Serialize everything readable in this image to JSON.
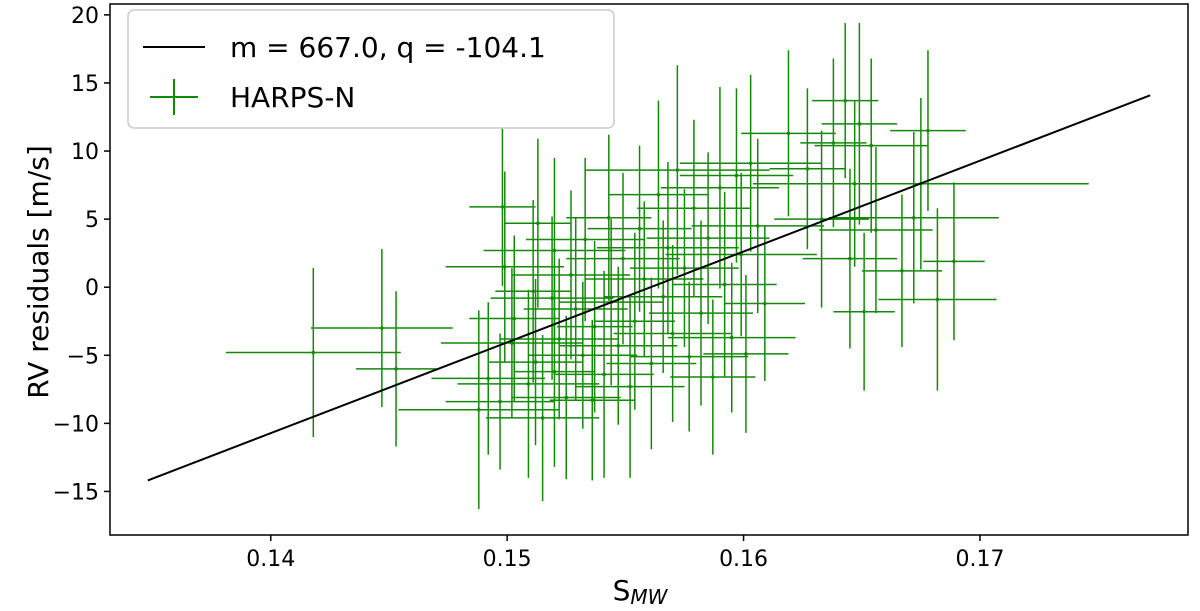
{
  "chart_data": {
    "type": "scatter",
    "title": "",
    "xlabel": "S",
    "xlabel_sub": "MW",
    "ylabel": "RV residuals [m/s]",
    "xlim": [
      0.1332,
      0.1788
    ],
    "ylim": [
      -18.2,
      20.8
    ],
    "x_ticks": [
      0.14,
      0.15,
      0.16,
      0.17
    ],
    "x_tick_labels": [
      "0.14",
      "0.15",
      "0.16",
      "0.17"
    ],
    "y_ticks": [
      -15,
      -10,
      -5,
      0,
      5,
      10,
      15,
      20
    ],
    "y_tick_labels": [
      "−15",
      "−10",
      "−5",
      "0",
      "5",
      "10",
      "15",
      "20"
    ],
    "grid": false,
    "legend_position": "top-left",
    "colors": {
      "fit": "#000000",
      "data": "#138a07"
    },
    "fit_line": {
      "label": "m = 667.0, q = -104.1",
      "slope": 667.0,
      "intercept": -104.1,
      "x_range": [
        0.1348,
        0.1772
      ]
    },
    "series": [
      {
        "name": "HARPS-N",
        "marker": "errorbar",
        "points": [
          {
            "x": 0.1418,
            "y": -4.8,
            "xerr": 0.0037,
            "yerr": 6.2
          },
          {
            "x": 0.1447,
            "y": -3.0,
            "xerr": 0.003,
            "yerr": 5.8
          },
          {
            "x": 0.1453,
            "y": -6.0,
            "xerr": 0.0017,
            "yerr": 5.7
          },
          {
            "x": 0.1488,
            "y": -9.0,
            "xerr": 0.0034,
            "yerr": 7.3
          },
          {
            "x": 0.1492,
            "y": -6.7,
            "xerr": 0.0024,
            "yerr": 5.6
          },
          {
            "x": 0.1497,
            "y": -8.4,
            "xerr": 0.0023,
            "yerr": 5.0
          },
          {
            "x": 0.1498,
            "y": 5.9,
            "xerr": 0.0014,
            "yerr": 5.8
          },
          {
            "x": 0.1499,
            "y": 1.5,
            "xerr": 0.0025,
            "yerr": 7.0
          },
          {
            "x": 0.1502,
            "y": -4.1,
            "xerr": 0.003,
            "yerr": 5.5
          },
          {
            "x": 0.1503,
            "y": -2.3,
            "xerr": 0.0019,
            "yerr": 6.1
          },
          {
            "x": 0.1509,
            "y": -7.1,
            "xerr": 0.003,
            "yerr": 6.9
          },
          {
            "x": 0.1511,
            "y": -0.3,
            "xerr": 0.0016,
            "yerr": 6.7
          },
          {
            "x": 0.1512,
            "y": -5.5,
            "xerr": 0.002,
            "yerr": 6.1
          },
          {
            "x": 0.1513,
            "y": 4.7,
            "xerr": 0.0014,
            "yerr": 6.2
          },
          {
            "x": 0.1515,
            "y": -9.6,
            "xerr": 0.0024,
            "yerr": 6.1
          },
          {
            "x": 0.1519,
            "y": -0.8,
            "xerr": 0.0026,
            "yerr": 6.0
          },
          {
            "x": 0.152,
            "y": -6.2,
            "xerr": 0.0017,
            "yerr": 7.0
          },
          {
            "x": 0.152,
            "y": 2.7,
            "xerr": 0.003,
            "yerr": 6.8
          },
          {
            "x": 0.1522,
            "y": -3.8,
            "xerr": 0.0025,
            "yerr": 5.9
          },
          {
            "x": 0.1525,
            "y": -8.1,
            "xerr": 0.0023,
            "yerr": 6.0
          },
          {
            "x": 0.1527,
            "y": 0.9,
            "xerr": 0.0025,
            "yerr": 6.2
          },
          {
            "x": 0.1529,
            "y": -1.6,
            "xerr": 0.0022,
            "yerr": 6.7
          },
          {
            "x": 0.1532,
            "y": -5.0,
            "xerr": 0.0023,
            "yerr": 5.4
          },
          {
            "x": 0.1533,
            "y": 3.5,
            "xerr": 0.0025,
            "yerr": 6.0
          },
          {
            "x": 0.1536,
            "y": -8.3,
            "xerr": 0.0018,
            "yerr": 5.9
          },
          {
            "x": 0.1537,
            "y": -2.9,
            "xerr": 0.0016,
            "yerr": 6.3
          },
          {
            "x": 0.1541,
            "y": -6.4,
            "xerr": 0.0021,
            "yerr": 7.6
          },
          {
            "x": 0.1543,
            "y": 5.1,
            "xerr": 0.0018,
            "yerr": 6.1
          },
          {
            "x": 0.1544,
            "y": -1.1,
            "xerr": 0.0022,
            "yerr": 6.1
          },
          {
            "x": 0.1547,
            "y": -4.3,
            "xerr": 0.0025,
            "yerr": 5.8
          },
          {
            "x": 0.1549,
            "y": 2.1,
            "xerr": 0.0024,
            "yerr": 6.3
          },
          {
            "x": 0.1552,
            "y": -7.3,
            "xerr": 0.0023,
            "yerr": 6.7
          },
          {
            "x": 0.1554,
            "y": -2.5,
            "xerr": 0.0017,
            "yerr": 6.5
          },
          {
            "x": 0.1556,
            "y": 4.3,
            "xerr": 0.0022,
            "yerr": 6.1
          },
          {
            "x": 0.1558,
            "y": 0.6,
            "xerr": 0.0025,
            "yerr": 5.7
          },
          {
            "x": 0.1561,
            "y": -5.6,
            "xerr": 0.0019,
            "yerr": 6.3
          },
          {
            "x": 0.1564,
            "y": 6.8,
            "xerr": 0.0021,
            "yerr": 6.9
          },
          {
            "x": 0.1566,
            "y": -0.7,
            "xerr": 0.0025,
            "yerr": 5.6
          },
          {
            "x": 0.1568,
            "y": 2.9,
            "xerr": 0.003,
            "yerr": 6.3
          },
          {
            "x": 0.157,
            "y": -3.4,
            "xerr": 0.0025,
            "yerr": 6.5
          },
          {
            "x": 0.1572,
            "y": 8.6,
            "xerr": 0.0039,
            "yerr": 7.7
          },
          {
            "x": 0.1575,
            "y": 1.4,
            "xerr": 0.0023,
            "yerr": 5.8
          },
          {
            "x": 0.1577,
            "y": -5.1,
            "xerr": 0.0025,
            "yerr": 5.5
          },
          {
            "x": 0.1579,
            "y": 5.8,
            "xerr": 0.0024,
            "yerr": 6.5
          },
          {
            "x": 0.1582,
            "y": -1.9,
            "xerr": 0.0022,
            "yerr": 6.8
          },
          {
            "x": 0.1585,
            "y": 3.6,
            "xerr": 0.0026,
            "yerr": 6.3
          },
          {
            "x": 0.1587,
            "y": -6.6,
            "xerr": 0.0018,
            "yerr": 5.7
          },
          {
            "x": 0.159,
            "y": 7.3,
            "xerr": 0.0025,
            "yerr": 7.4
          },
          {
            "x": 0.1592,
            "y": 0.2,
            "xerr": 0.0022,
            "yerr": 6.8
          },
          {
            "x": 0.1595,
            "y": -3.7,
            "xerr": 0.0027,
            "yerr": 5.5
          },
          {
            "x": 0.1597,
            "y": 8.2,
            "xerr": 0.0024,
            "yerr": 6.4
          },
          {
            "x": 0.1599,
            "y": 2.4,
            "xerr": 0.0032,
            "yerr": 6.0
          },
          {
            "x": 0.1601,
            "y": -4.9,
            "xerr": 0.0018,
            "yerr": 5.8
          },
          {
            "x": 0.1603,
            "y": 9.1,
            "xerr": 0.003,
            "yerr": 6.5
          },
          {
            "x": 0.1606,
            "y": 4.5,
            "xerr": 0.0028,
            "yerr": 6.4
          },
          {
            "x": 0.1609,
            "y": -1.2,
            "xerr": 0.0017,
            "yerr": 5.7
          },
          {
            "x": 0.1619,
            "y": 11.3,
            "xerr": 0.002,
            "yerr": 6.1
          },
          {
            "x": 0.1627,
            "y": 8.7,
            "xerr": 0.0016,
            "yerr": 5.9
          },
          {
            "x": 0.1633,
            "y": 5.0,
            "xerr": 0.002,
            "yerr": 6.5
          },
          {
            "x": 0.1638,
            "y": 10.6,
            "xerr": 0.0014,
            "yerr": 6.2
          },
          {
            "x": 0.1643,
            "y": 13.7,
            "xerr": 0.0014,
            "yerr": 5.7
          },
          {
            "x": 0.1645,
            "y": 2.1,
            "xerr": 0.002,
            "yerr": 6.6
          },
          {
            "x": 0.1647,
            "y": 7.6,
            "xerr": 0.0027,
            "yerr": 6.1
          },
          {
            "x": 0.1649,
            "y": 12.0,
            "xerr": 0.0016,
            "yerr": 7.4
          },
          {
            "x": 0.1651,
            "y": -1.8,
            "xerr": 0.0013,
            "yerr": 5.8
          },
          {
            "x": 0.1654,
            "y": 10.4,
            "xerr": 0.0024,
            "yerr": 6.4
          },
          {
            "x": 0.1656,
            "y": 4.2,
            "xerr": 0.0024,
            "yerr": 6.1
          },
          {
            "x": 0.1667,
            "y": 1.2,
            "xerr": 0.0017,
            "yerr": 5.6
          },
          {
            "x": 0.1672,
            "y": 5.1,
            "xerr": 0.0036,
            "yerr": 6.3
          },
          {
            "x": 0.1675,
            "y": 7.6,
            "xerr": 0.0071,
            "yerr": 6.3
          },
          {
            "x": 0.1678,
            "y": 11.5,
            "xerr": 0.0016,
            "yerr": 5.9
          },
          {
            "x": 0.1682,
            "y": -0.9,
            "xerr": 0.0025,
            "yerr": 6.7
          },
          {
            "x": 0.1689,
            "y": 1.9,
            "xerr": 0.0013,
            "yerr": 5.8
          }
        ]
      }
    ]
  }
}
